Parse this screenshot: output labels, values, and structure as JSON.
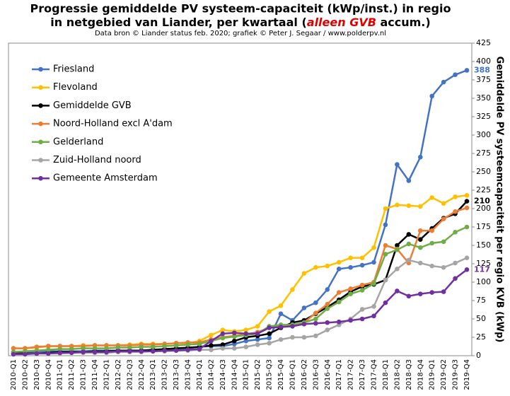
{
  "chart_data": {
    "type": "line",
    "title_line1": "Progressie gemiddelde PV systeem-capaciteit  (kWp/inst.) in regio",
    "title_line2": [
      "in netgebied van Liander, per kwartaal (",
      "alleen GVB",
      " accum.)"
    ],
    "subtitle": "Data bron © Liander status feb. 2020; grafiek © Peter J. Segaar / www.polderpv.nl",
    "y_axis_label": "Gemiddelde PV systeemcapaciteit per regio KVB (kWp)",
    "categories": [
      "2010-Q1",
      "2010-Q2",
      "2010-Q3",
      "2010-Q4",
      "2011-Q1",
      "2011-Q2",
      "2011-Q3",
      "2011-Q4",
      "2012-Q1",
      "2012-Q2",
      "2012-Q3",
      "2012-Q4",
      "2013-Q1",
      "2013-Q2",
      "2013-Q3",
      "2013-Q4",
      "2014-Q1",
      "2014-Q2",
      "2014-Q3",
      "2014-Q4",
      "2015-Q1",
      "2015-Q2",
      "2015-Q3",
      "2015-Q4",
      "2016-Q1",
      "2016-Q2",
      "2016-Q3",
      "2016-Q4",
      "2017-Q1",
      "2017-Q2",
      "2017-Q3",
      "2017-Q4",
      "2018-Q1",
      "2018-Q2",
      "2018-Q3",
      "2018-Q4",
      "2019-Q1",
      "2019-Q2",
      "2019-Q3",
      "2019-Q4"
    ],
    "ylim": [
      0,
      425
    ],
    "yticks": [
      0,
      25,
      50,
      75,
      100,
      125,
      150,
      175,
      200,
      225,
      250,
      275,
      300,
      325,
      350,
      375,
      400,
      425
    ],
    "grid": false,
    "legend": "upper left",
    "series": [
      {
        "name": "Friesland",
        "color": "#4472c4",
        "end_label": true,
        "values": [
          5,
          5,
          5,
          6,
          6,
          6,
          6,
          7,
          7,
          7,
          7,
          7,
          8,
          8,
          9,
          10,
          12,
          13,
          13,
          16,
          20,
          22,
          24,
          57,
          48,
          65,
          72,
          90,
          118,
          120,
          123,
          127,
          178,
          260,
          238,
          270,
          353,
          372,
          382,
          388
        ]
      },
      {
        "name": "Flevoland",
        "color": "#ffc000",
        "end_label": false,
        "values": [
          10,
          10,
          11,
          13,
          13,
          13,
          14,
          14,
          14,
          14,
          15,
          16,
          16,
          16,
          17,
          17,
          20,
          28,
          35,
          33,
          35,
          40,
          60,
          68,
          90,
          112,
          120,
          122,
          127,
          133,
          133,
          147,
          200,
          205,
          204,
          203,
          215,
          207,
          216,
          218
        ]
      },
      {
        "name": "Gemiddelde GVB",
        "color": "#000000",
        "end_label": true,
        "values": [
          3,
          3,
          3,
          4,
          5,
          5,
          5,
          6,
          6,
          7,
          7,
          7,
          8,
          9,
          10,
          11,
          12,
          14,
          15,
          20,
          25,
          27,
          30,
          38,
          45,
          48,
          57,
          66,
          76,
          87,
          94,
          97,
          103,
          150,
          165,
          158,
          173,
          187,
          193,
          210
        ]
      },
      {
        "name": "Noord-Holland excl A'dam",
        "color": "#ed7d31",
        "end_label": false,
        "values": [
          10,
          10,
          12,
          13,
          13,
          13,
          13,
          14,
          14,
          14,
          14,
          15,
          15,
          16,
          17,
          18,
          18,
          22,
          25,
          27,
          29,
          32,
          38,
          40,
          42,
          45,
          58,
          70,
          86,
          91,
          96,
          100,
          150,
          145,
          126,
          170,
          170,
          186,
          196,
          201
        ]
      },
      {
        "name": "Gelderland",
        "color": "#70ad47",
        "end_label": false,
        "values": [
          5,
          6,
          7,
          8,
          9,
          9,
          10,
          10,
          10,
          11,
          11,
          12,
          12,
          13,
          14,
          15,
          16,
          20,
          24,
          26,
          28,
          30,
          40,
          42,
          42,
          45,
          50,
          64,
          73,
          84,
          89,
          98,
          138,
          144,
          152,
          147,
          153,
          155,
          168,
          175
        ]
      },
      {
        "name": "Zuid-Holland noord",
        "color": "#a5a5a5",
        "end_label": false,
        "values": [
          2,
          2,
          3,
          3,
          3,
          4,
          4,
          4,
          4,
          5,
          5,
          5,
          6,
          6,
          7,
          7,
          8,
          8,
          10,
          10,
          12,
          15,
          17,
          22,
          25,
          25,
          27,
          35,
          42,
          50,
          63,
          67,
          103,
          118,
          130,
          126,
          122,
          120,
          126,
          133
        ]
      },
      {
        "name": "Gemeente Amsterdam",
        "color": "#7030a0",
        "end_label": true,
        "values": [
          2,
          2,
          3,
          3,
          4,
          4,
          5,
          5,
          5,
          6,
          6,
          6,
          6,
          7,
          7,
          8,
          9,
          20,
          30,
          31,
          30,
          30,
          38,
          39,
          40,
          43,
          44,
          45,
          46,
          48,
          50,
          54,
          72,
          88,
          81,
          84,
          86,
          87,
          105,
          117
        ]
      }
    ]
  }
}
